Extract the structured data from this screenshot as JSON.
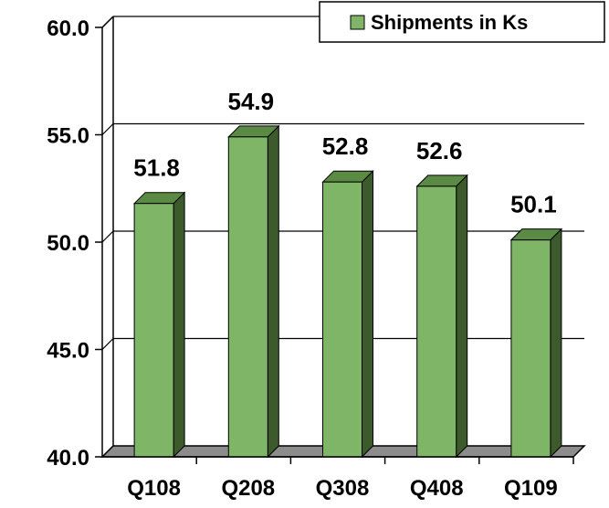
{
  "chart_data": {
    "type": "bar",
    "categories": [
      "Q108",
      "Q208",
      "Q308",
      "Q408",
      "Q109"
    ],
    "series": [
      {
        "name": "Shipments in Ks",
        "values": [
          51.8,
          54.9,
          52.8,
          52.6,
          50.1
        ]
      }
    ],
    "data_labels": [
      "51.8",
      "54.9",
      "52.8",
      "52.6",
      "50.1"
    ],
    "y_ticks": [
      "40.0",
      "45.0",
      "50.0",
      "55.0",
      "60.0"
    ],
    "ylim": [
      40,
      60
    ],
    "y_tick_values": [
      40,
      45,
      50,
      55,
      60
    ],
    "title": "",
    "xlabel": "",
    "ylabel": "",
    "grid": true,
    "three_d": true,
    "legend_position": "top-right",
    "legend_label": "Shipments in Ks",
    "colors": {
      "bar_front": "#7fb567",
      "bar_side": "#3d5a2c",
      "bar_top": "#5a8a44",
      "floor": "#8c8c8c",
      "gridline": "#000000",
      "legend_swatch": "#7fb567"
    }
  }
}
